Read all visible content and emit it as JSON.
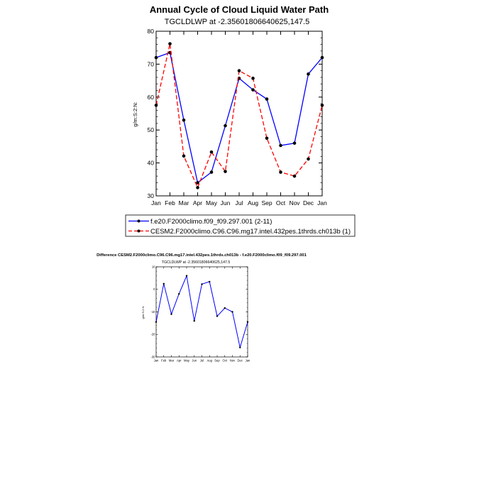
{
  "chart_data": [
    {
      "type": "line",
      "title": "Annual Cycle of Cloud Liquid Water Path",
      "subtitle": "TGCLDLWP at -2.35601806640625,147.5",
      "ylabel": "g/m:S:2:N:",
      "xlabel": "",
      "categories": [
        "Jan",
        "Feb",
        "Mar",
        "Apr",
        "May",
        "Jun",
        "Jul",
        "Aug",
        "Sep",
        "Oct",
        "Nov",
        "Dec",
        "Jan"
      ],
      "ylim": [
        30,
        80
      ],
      "yticks": [
        "30",
        "40",
        "50",
        "60",
        "70",
        "80"
      ],
      "series": [
        {
          "name": "f.e20.F2000climo.f09_f09.297.001 (2-11)",
          "color": "#0000ff",
          "dash": "solid",
          "values": [
            72,
            73.5,
            53,
            34,
            37.2,
            51.3,
            65.7,
            62.2,
            59.4,
            45.3,
            46,
            67,
            72
          ]
        },
        {
          "name": "CESM2.F2000climo.C96.C96.mg17.intel.432pes.1thrds.ch013b (1)",
          "color": "#ff0000",
          "dash": "dashed",
          "values": [
            57.5,
            76.2,
            42.1,
            32.5,
            43.3,
            37.4,
            68,
            65.7,
            47.5,
            37.2,
            36,
            41.2,
            57.5
          ]
        }
      ]
    },
    {
      "type": "line",
      "title": "Difference CESM2.F2000climo.C96.C96.mg17.intel.432pes.1thrds.ch013b - f.e20.F2000climo.f09_f09.297.001",
      "subtitle": "TGCLDLWP at -2.35601806640625,147.5",
      "ylabel": "g/m:S:2:N:",
      "xlabel": "",
      "categories": [
        "Jan",
        "Feb",
        "Mar",
        "Apr",
        "May",
        "Jun",
        "Jul",
        "Aug",
        "Sep",
        "Oct",
        "Nov",
        "Dec",
        "Jan"
      ],
      "ylim": [
        -30,
        10
      ],
      "yticks": [
        "-30",
        "-20",
        "-10",
        "0",
        "10"
      ],
      "series": [
        {
          "color": "#0000ff",
          "dash": "solid",
          "values": [
            -14.5,
            2.5,
            -11,
            -2,
            6,
            -14,
            2.3,
            3.4,
            -11.9,
            -8.3,
            -10,
            -25.8,
            -14.5
          ]
        }
      ]
    }
  ]
}
